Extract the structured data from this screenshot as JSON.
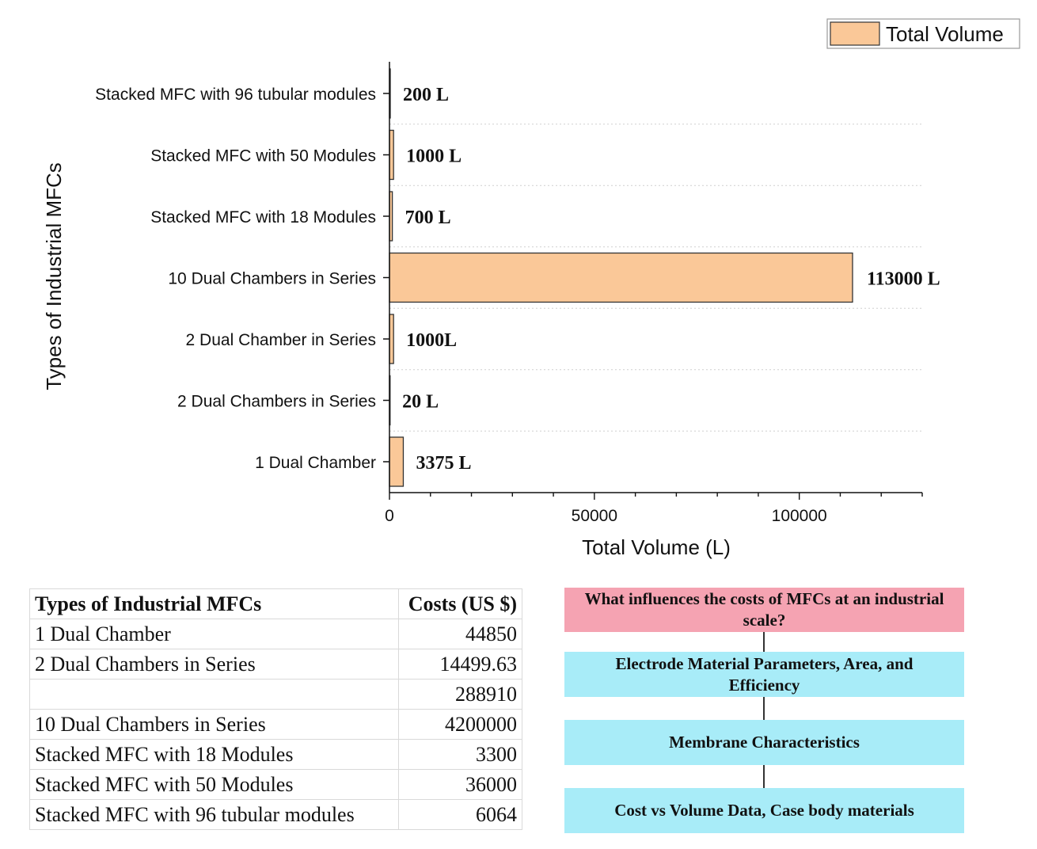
{
  "chart_data": {
    "type": "bar",
    "orientation": "horizontal",
    "categories": [
      "Stacked MFC with 96 tubular modules",
      "Stacked MFC with 50 Modules",
      "Stacked MFC with 18 Modules",
      "10 Dual Chambers in Series",
      "2 Dual Chamber in Series",
      "2 Dual Chambers in Series",
      "1 Dual Chamber"
    ],
    "values": [
      200,
      1000,
      700,
      113000,
      1000,
      20,
      3375
    ],
    "data_labels": [
      "200 L",
      "1000 L",
      "700 L",
      "113000 L",
      "1000L",
      "20 L",
      "3375 L"
    ],
    "series_name": "Total Volume",
    "xlabel": "Total Volume (L)",
    "ylabel": "Types of Industrial MFCs",
    "xlim": [
      0,
      130000
    ],
    "x_ticks": [
      0,
      50000,
      100000
    ],
    "x_tick_labels": [
      "0",
      "50000",
      "100000"
    ],
    "legend": "top-right",
    "grid": "horizontal dotted",
    "bar_color": "#fac898",
    "bar_edge_color": "#333333"
  },
  "cost_table": {
    "headers": [
      "Types of Industrial MFCs",
      "Costs (US $)"
    ],
    "rows": [
      {
        "type": "1 Dual Chamber",
        "cost": "44850"
      },
      {
        "type": "2 Dual Chambers in Series",
        "cost": "14499.63"
      },
      {
        "type": "",
        "cost": "288910"
      },
      {
        "type": "10 Dual Chambers in Series",
        "cost": "4200000"
      },
      {
        "type": "Stacked MFC with 18 Modules",
        "cost": "3300"
      },
      {
        "type": "Stacked MFC with 50 Modules",
        "cost": "36000"
      },
      {
        "type": "Stacked MFC with 96 tubular modules",
        "cost": "6064"
      }
    ]
  },
  "flow": {
    "question": "What influences the costs of MFCs at an industrial scale?",
    "factors": [
      "Electrode Material Parameters, Area, and Efficiency",
      "Membrane Characteristics",
      "Cost vs Volume Data, Case body materials"
    ],
    "question_color": "#f5a3b2",
    "factor_color": "#a8ecf8"
  }
}
